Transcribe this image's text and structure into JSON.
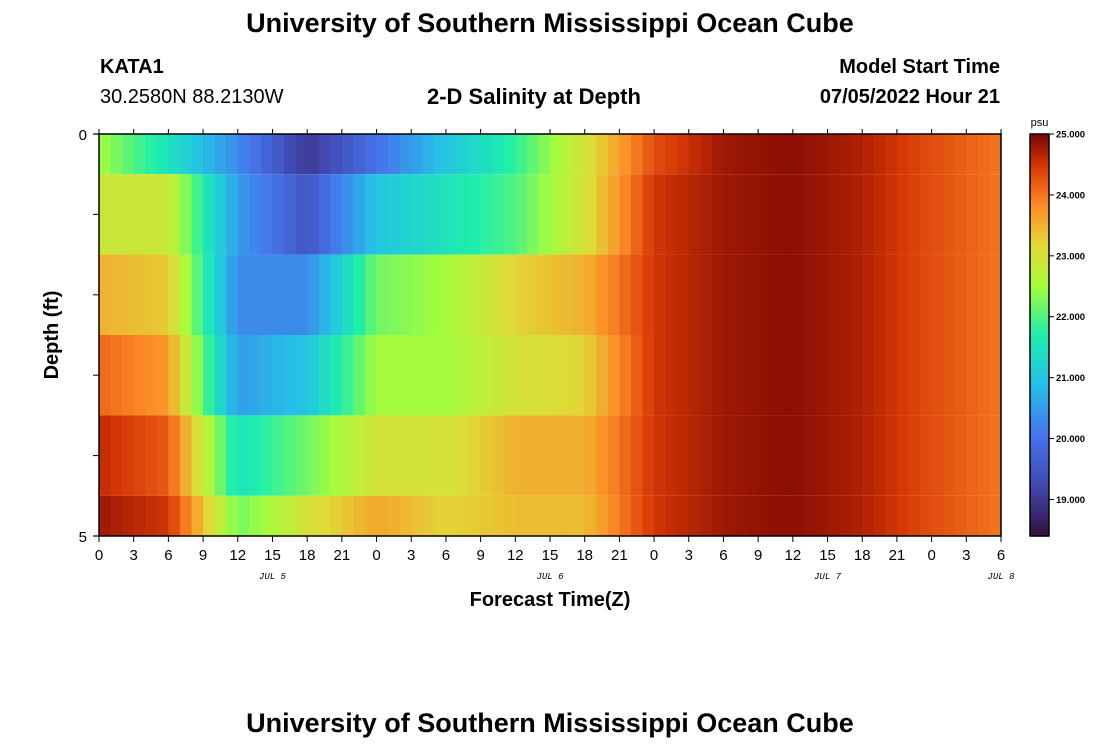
{
  "page": {
    "title": "University of Southern Mississippi Ocean Cube",
    "footer_title": "University of Southern Mississippi Ocean Cube"
  },
  "station": {
    "id": "KATA1",
    "coords": "30.2580N  88.2130W"
  },
  "model": {
    "start_label": "Model Start Time",
    "start_value": "07/05/2022 Hour 21"
  },
  "chart_data": {
    "type": "heatmap",
    "title": "2-D Salinity at Depth",
    "xlabel": "Forecast Time(Z)",
    "ylabel": "Depth (ft)",
    "unit": "psu",
    "ylim": [
      0,
      5
    ],
    "y_tick_labels": [
      "0",
      "5"
    ],
    "y_minor_ticks": [
      1,
      2,
      3,
      4
    ],
    "x_tick_labels": [
      "0",
      "3",
      "6",
      "9",
      "12",
      "15",
      "18",
      "21",
      "0",
      "3",
      "6",
      "9",
      "12",
      "15",
      "18",
      "21",
      "0",
      "3",
      "6",
      "9",
      "12",
      "15",
      "18",
      "21",
      "0",
      "3",
      "6"
    ],
    "date_labels": [
      "JUL 5",
      "JUL 6",
      "JUL 7",
      "JUL 8"
    ],
    "date_label_hours": [
      15,
      39,
      63,
      78
    ],
    "x_hours": [
      0,
      6,
      12,
      18,
      24,
      30,
      36,
      42,
      48,
      54,
      60,
      66,
      72,
      78
    ],
    "depth_bands": [
      [
        0,
        0.5
      ],
      [
        0.5,
        1.5
      ],
      [
        1.5,
        2.5
      ],
      [
        2.5,
        3.5
      ],
      [
        3.5,
        4.5
      ],
      [
        4.5,
        5
      ]
    ],
    "rows": [
      [
        22.5,
        21.5,
        20.3,
        19.0,
        20.0,
        21.0,
        21.8,
        23.0,
        24.3,
        24.8,
        24.9,
        24.7,
        24.3,
        24.0
      ],
      [
        22.9,
        22.9,
        20.5,
        19.5,
        21.0,
        21.5,
        22.0,
        23.0,
        24.5,
        24.8,
        24.9,
        24.7,
        24.3,
        24.0
      ],
      [
        23.5,
        23.3,
        20.3,
        20.3,
        22.2,
        22.5,
        23.2,
        23.5,
        24.5,
        24.8,
        24.9,
        24.7,
        24.3,
        24.0
      ],
      [
        24.1,
        23.7,
        20.5,
        21.0,
        22.5,
        22.5,
        23.0,
        23.2,
        24.5,
        24.8,
        24.9,
        24.7,
        24.3,
        24.0
      ],
      [
        24.6,
        24.2,
        21.5,
        22.2,
        23.0,
        23.0,
        23.5,
        23.5,
        24.5,
        24.8,
        24.9,
        24.7,
        24.3,
        24.0
      ],
      [
        24.8,
        24.5,
        22.2,
        23.0,
        23.6,
        23.2,
        23.4,
        23.4,
        24.5,
        24.8,
        24.9,
        24.7,
        24.3,
        24.0
      ]
    ],
    "colorbar": {
      "label": "psu",
      "range": [
        18.4,
        25.0
      ],
      "tick_labels": [
        "25.000",
        "24.000",
        "23.000",
        "22.000",
        "21.000",
        "20.000",
        "19.000"
      ],
      "tick_values": [
        25,
        24,
        23,
        22,
        21,
        20,
        19
      ]
    }
  }
}
